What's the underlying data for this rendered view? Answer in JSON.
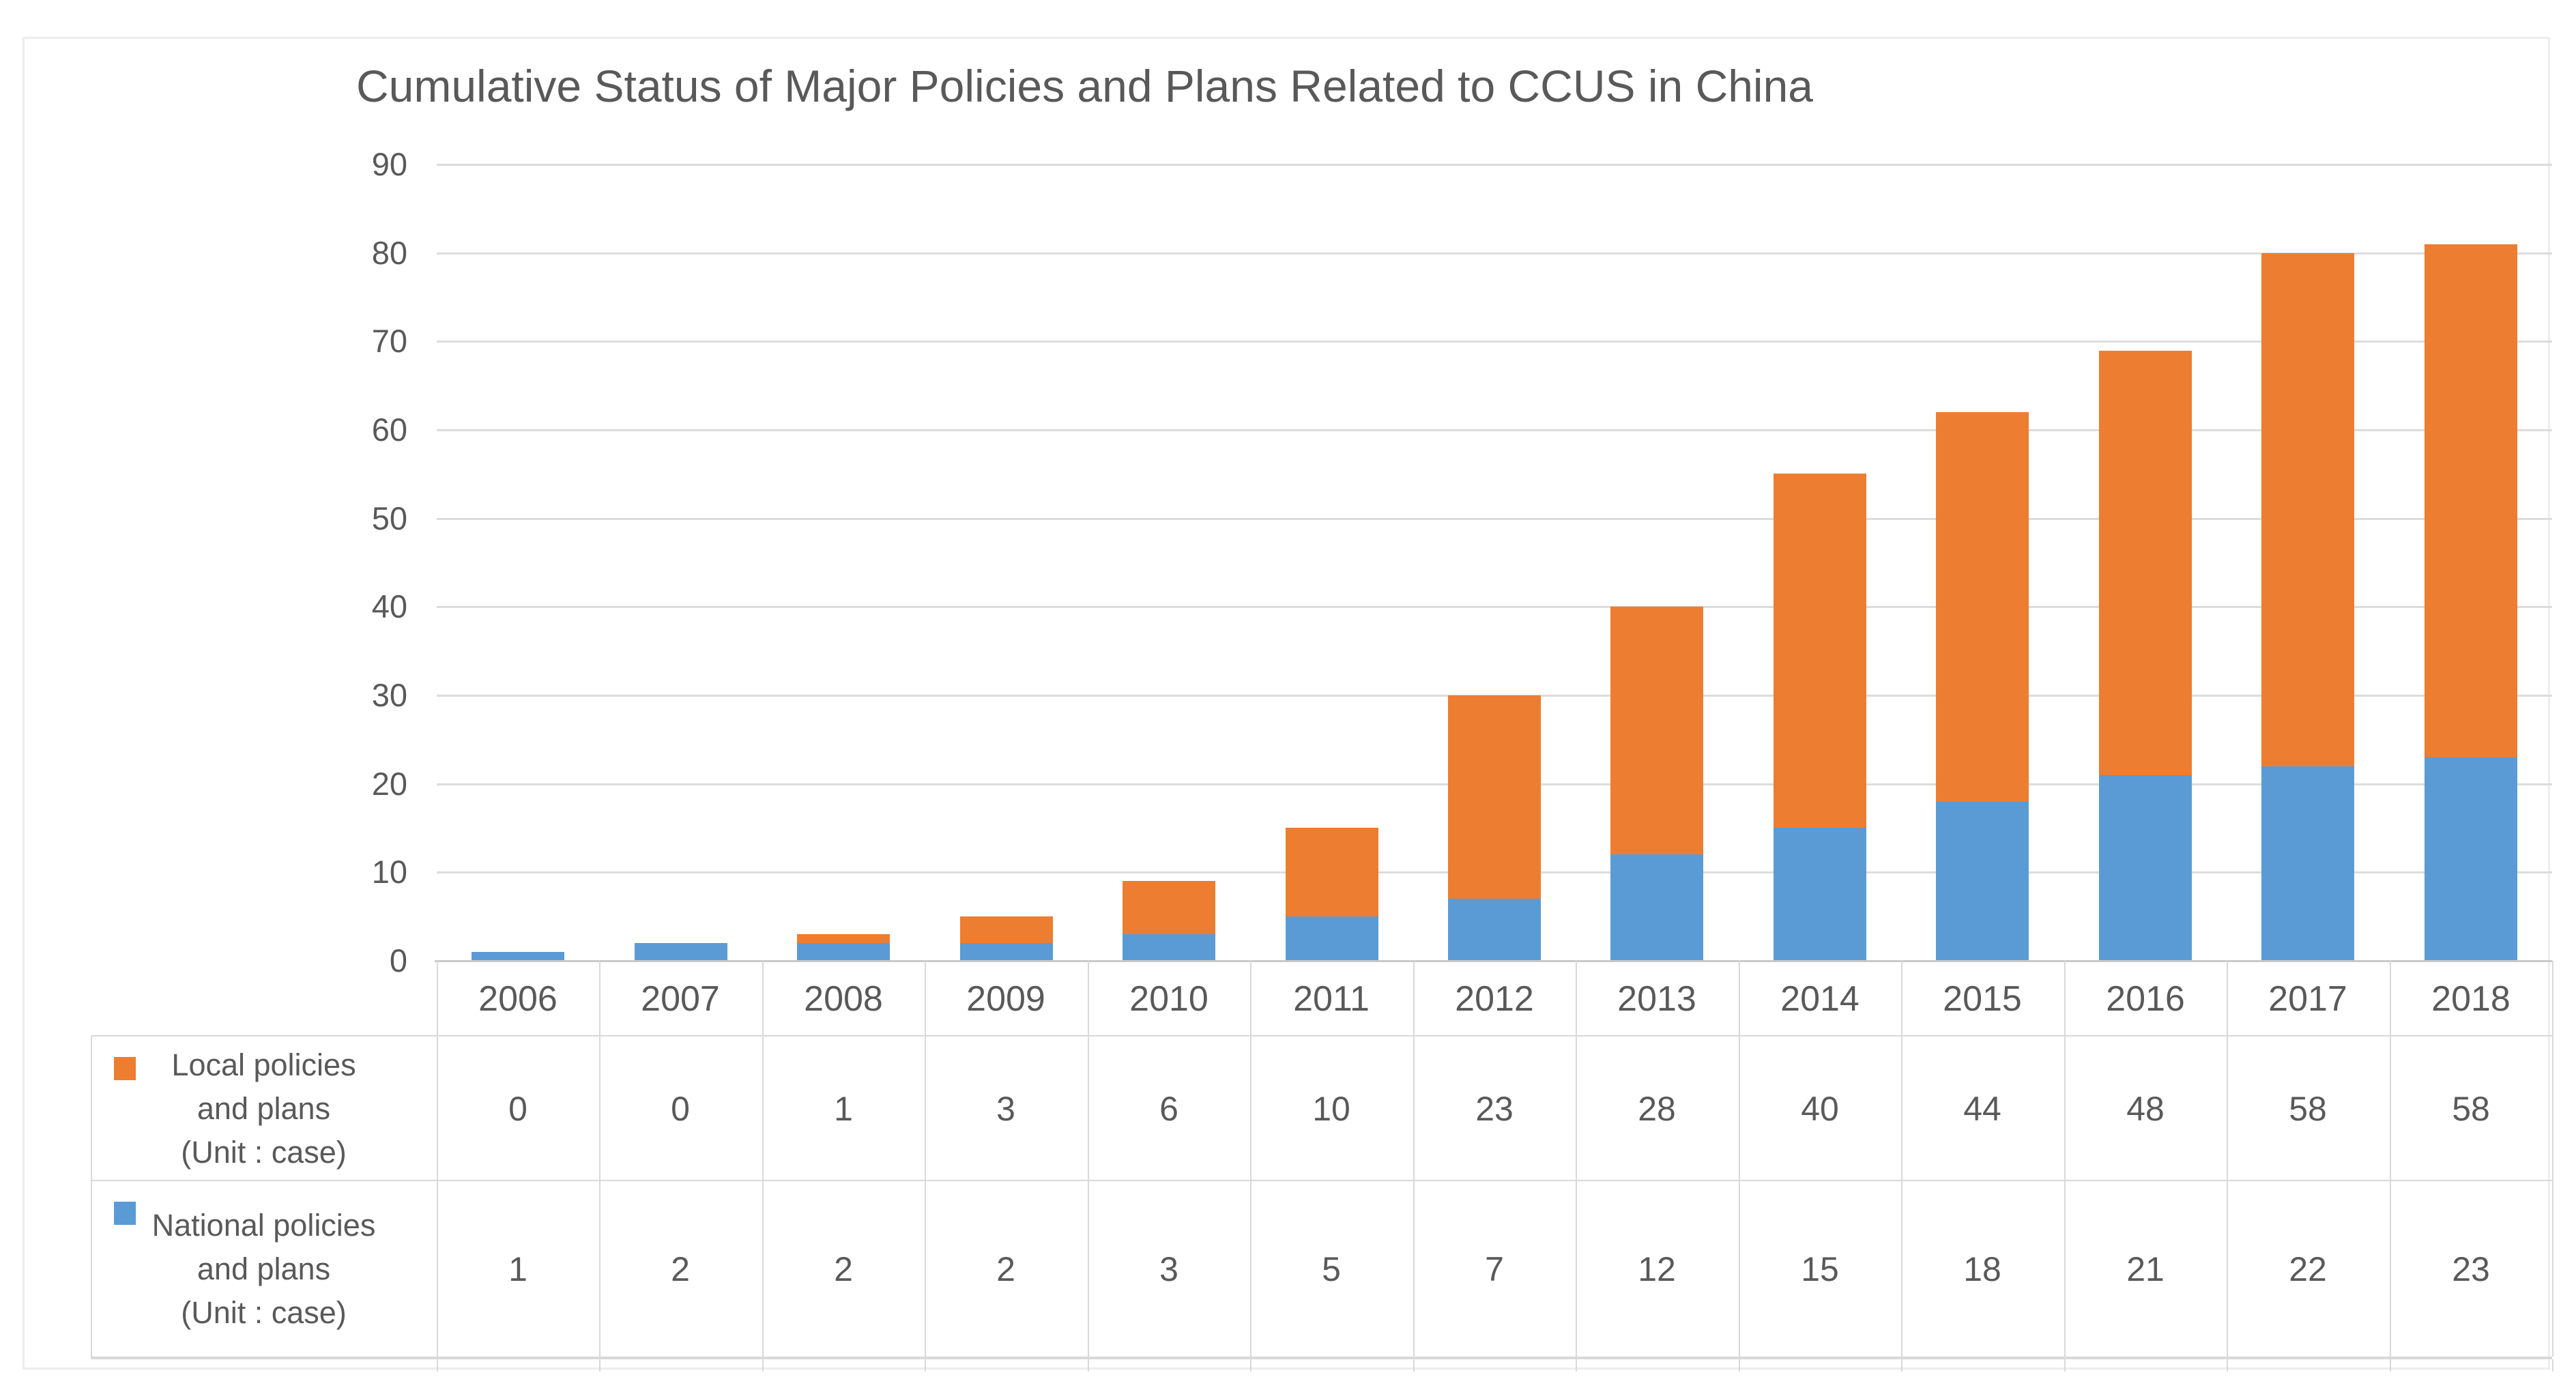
{
  "chart_data": {
    "type": "bar",
    "stacked": true,
    "title": "Cumulative Status of Major Policies and Plans Related to CCUS in China",
    "categories": [
      "2006",
      "2007",
      "2008",
      "2009",
      "2010",
      "2011",
      "2012",
      "2013",
      "2014",
      "2015",
      "2016",
      "2017",
      "2018"
    ],
    "series": [
      {
        "name": "Local policies and plans (Unit : case)",
        "legend_lines": [
          "Local policies",
          "and plans",
          "(Unit : case)"
        ],
        "color": "#ED7D31",
        "stack_position": "top",
        "values": [
          0,
          0,
          1,
          3,
          6,
          10,
          23,
          28,
          40,
          44,
          48,
          58,
          58
        ]
      },
      {
        "name": "National policies and plans (Unit : case)",
        "legend_lines": [
          "National policies",
          "and plans",
          "(Unit : case)"
        ],
        "color": "#5B9BD5",
        "stack_position": "bottom",
        "values": [
          1,
          2,
          2,
          2,
          3,
          5,
          7,
          12,
          15,
          18,
          21,
          22,
          23
        ]
      }
    ],
    "stack_totals": [
      1,
      2,
      3,
      5,
      9,
      15,
      30,
      40,
      55,
      62,
      69,
      80,
      81
    ],
    "xlabel": "",
    "ylabel": "",
    "ylim": [
      0,
      90
    ],
    "y_ticks": [
      0,
      10,
      20,
      30,
      40,
      50,
      60,
      70,
      80,
      90
    ],
    "grid": true,
    "legend_position": "left-of-data-table",
    "data_table_shown": true,
    "colors": {
      "text": "#595959",
      "gridline": "#DCDCDC",
      "axis_line": "#C9C9C9",
      "table_border": "#D9D9D9",
      "frame_border": "#EDEDED",
      "background": "#FFFFFF"
    }
  }
}
